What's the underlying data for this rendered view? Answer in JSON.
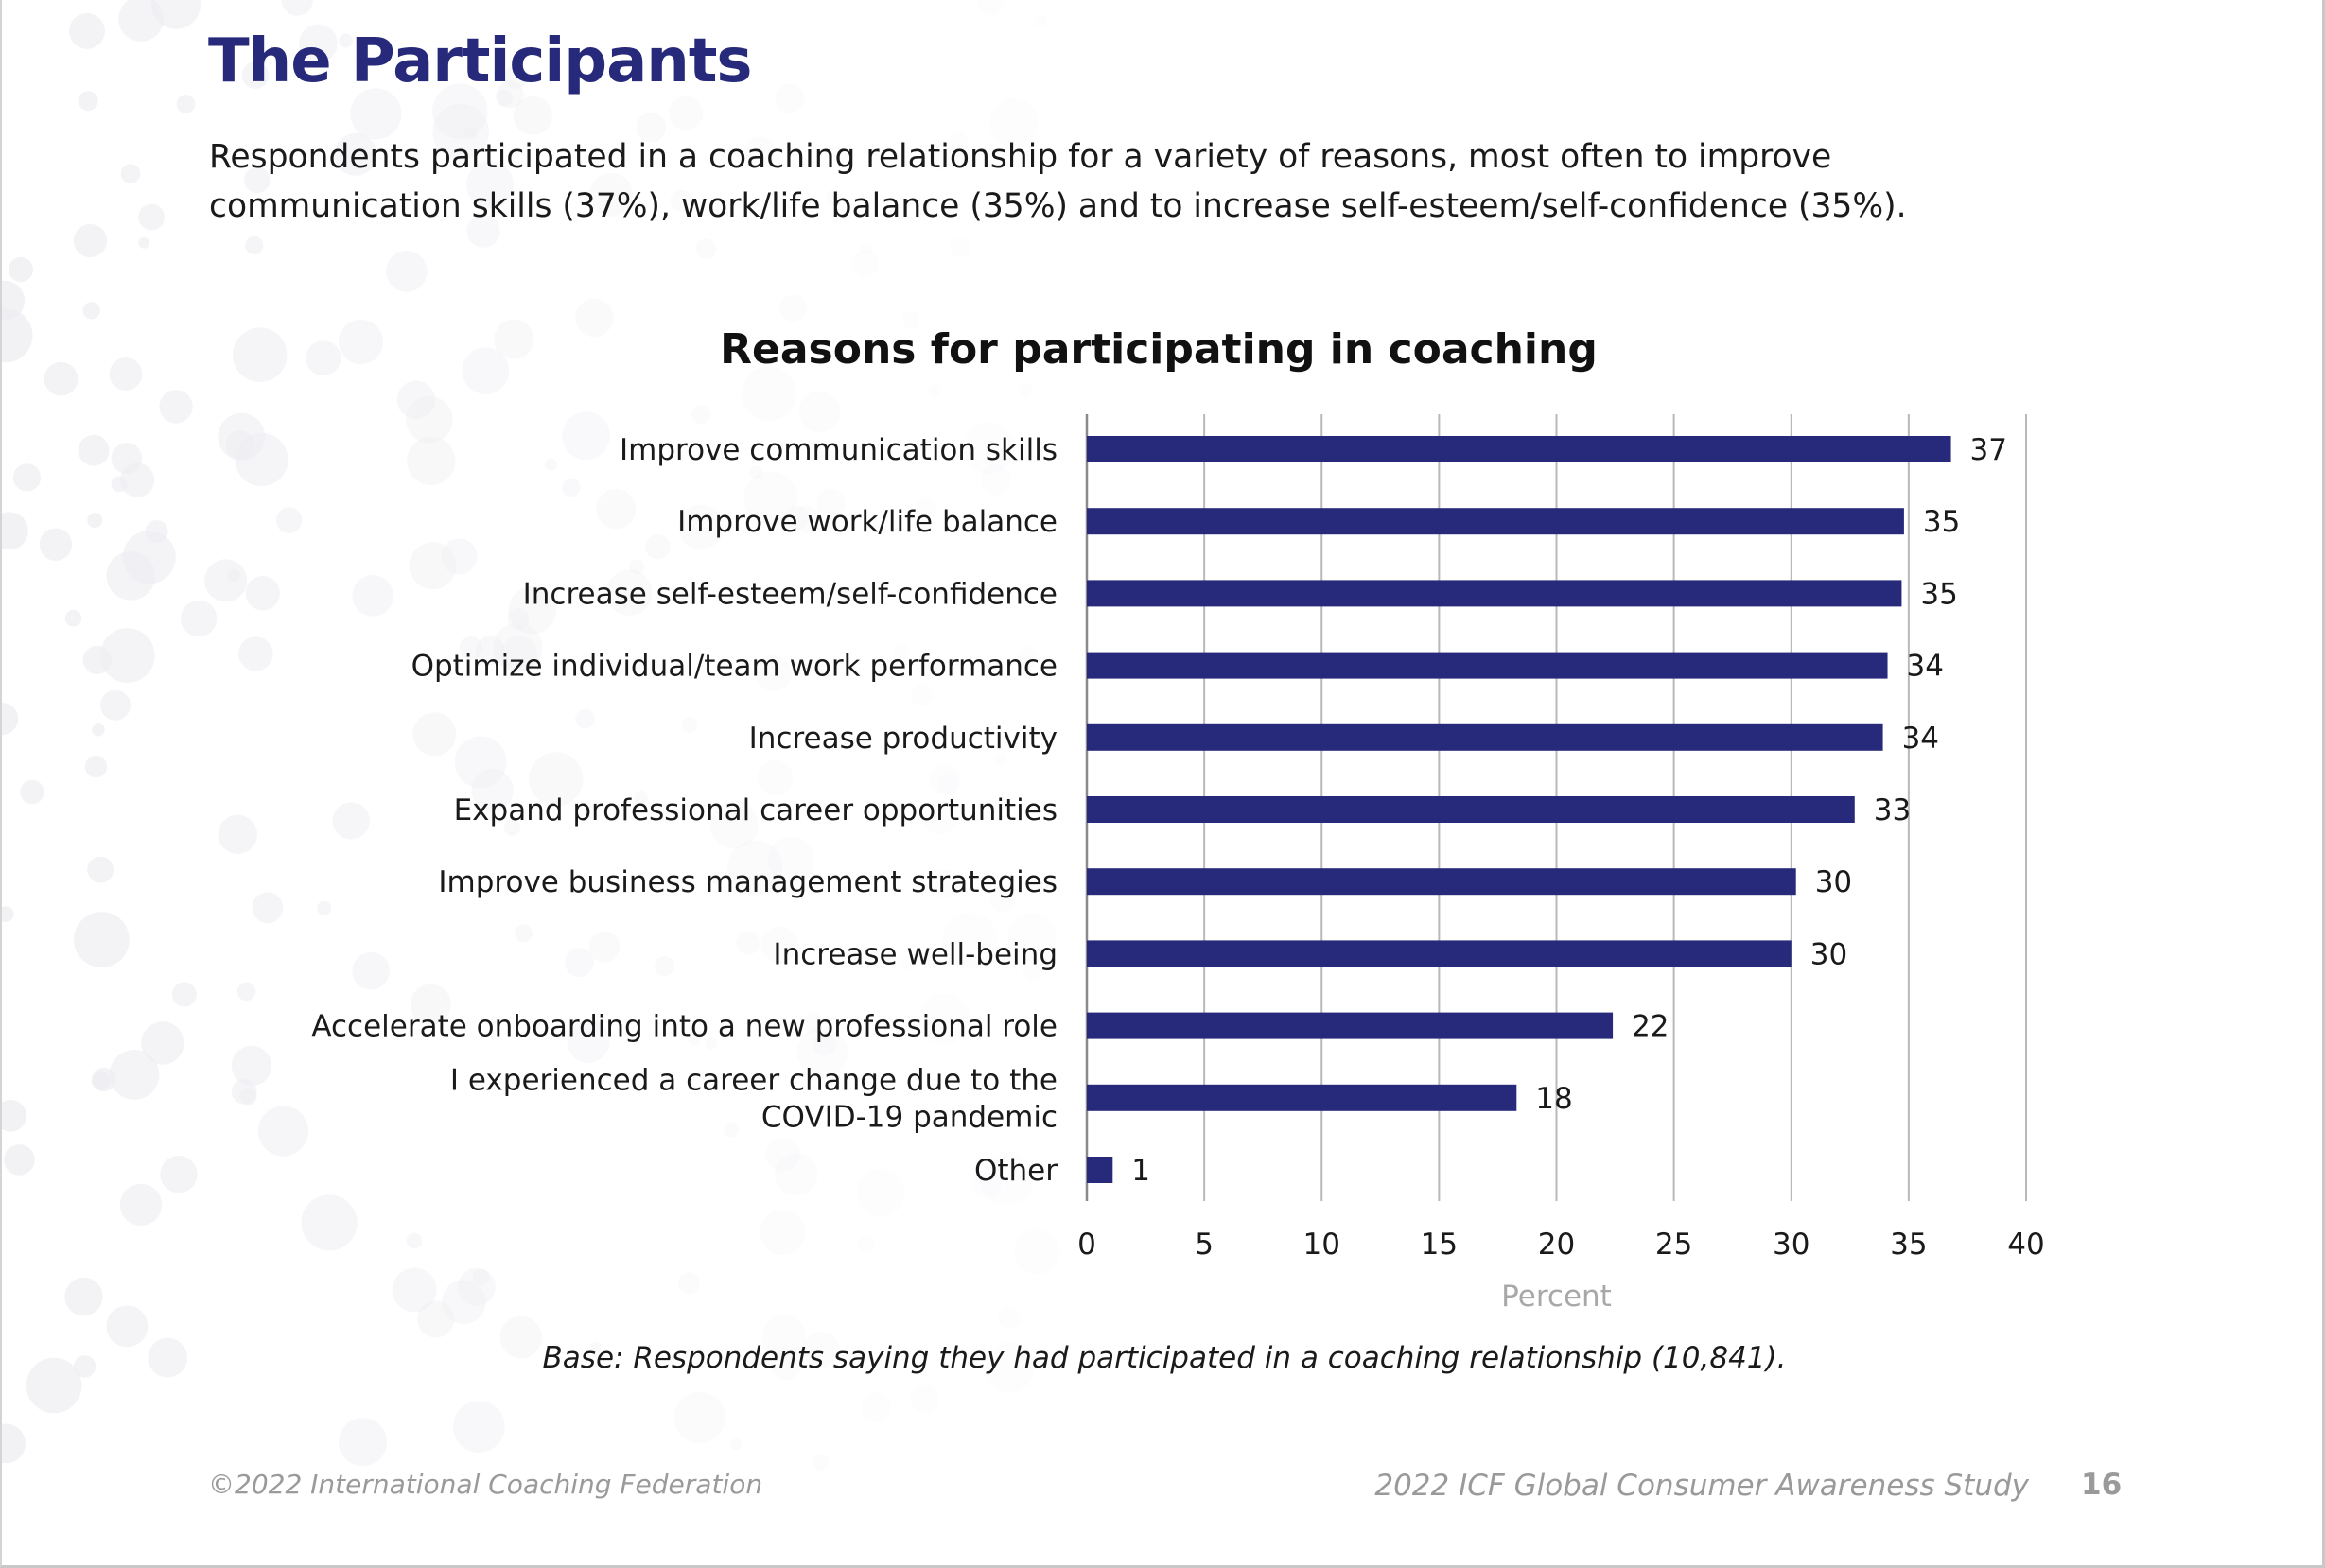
{
  "page": {
    "title": "The Participants",
    "intro": "Respondents participated in a coaching relationship for a variety of reasons, most often to improve communication skills (37%), work/life balance (35%) and to increase self-esteem/self-confidence (35%).",
    "base_note": "Base: Respondents saying they had participated in a coaching relationship (10,841).",
    "footer_left": "©2022 International Coaching Federation",
    "footer_right": "2022 ICF Global Consumer Awareness Study",
    "page_number": "16"
  },
  "colors": {
    "bar": "#272a7a",
    "title": "#272a7a",
    "grid": "#b9b9b9",
    "axis_label": "#a8a8a8",
    "footer": "#9a9a9a"
  },
  "chart_data": {
    "type": "bar",
    "orientation": "horizontal",
    "title": "Reasons for participating in coaching",
    "xlabel": "Percent",
    "ylabel": "",
    "xlim": [
      0,
      40
    ],
    "xticks": [
      0,
      5,
      10,
      15,
      20,
      25,
      30,
      35,
      40
    ],
    "grid": true,
    "categories": [
      "Improve communication skills",
      "Improve work/life balance",
      "Increase self-esteem/self-confidence",
      "Optimize individual/team work performance",
      "Increase productivity",
      "Expand professional career opportunities",
      "Improve business management strategies",
      "Increase well-being",
      "Accelerate onboarding into a new professional role",
      "I experienced a career change due to the COVID-19 pandemic",
      "Other"
    ],
    "category_lines": [
      [
        "Improve communication skills"
      ],
      [
        "Improve work/life balance"
      ],
      [
        "Increase self-esteem/self-confidence"
      ],
      [
        "Optimize individual/team work performance"
      ],
      [
        "Increase productivity"
      ],
      [
        "Expand professional career opportunities"
      ],
      [
        "Improve business management strategies"
      ],
      [
        "Increase well-being"
      ],
      [
        "Accelerate onboarding into a new professional role"
      ],
      [
        "I experienced a career change due to the",
        "COVID-19 pandemic"
      ],
      [
        "Other"
      ]
    ],
    "values": [
      36.8,
      34.8,
      34.7,
      34.1,
      33.9,
      32.7,
      30.2,
      30.0,
      22.4,
      18.3,
      1.1
    ],
    "data_labels": [
      "37",
      "35",
      "35",
      "34",
      "34",
      "33",
      "30",
      "30",
      "22",
      "18",
      "1"
    ]
  }
}
